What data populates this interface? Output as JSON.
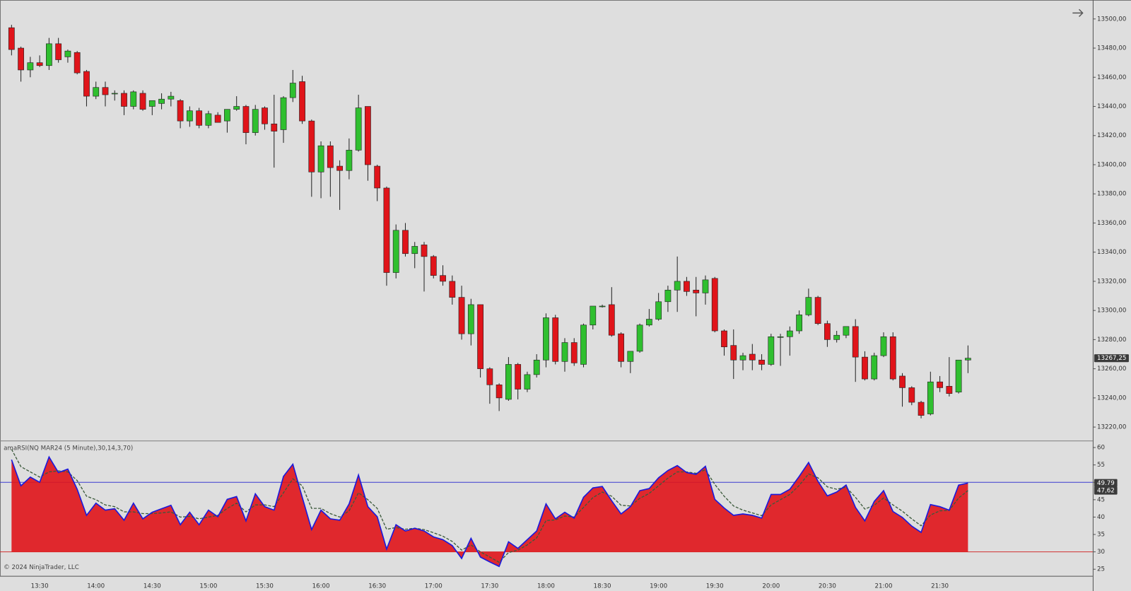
{
  "chart_data": [
    {
      "type": "candlestick",
      "categories": [
        null,
        null,
        null,
        "13:30",
        null,
        null,
        null,
        null,
        null,
        "14:00",
        null,
        null,
        null,
        null,
        null,
        "14:30",
        null,
        null,
        null,
        null,
        null,
        "15:00",
        null,
        null,
        null,
        null,
        null,
        "15:30",
        null,
        null,
        null,
        null,
        null,
        "16:00",
        null,
        null,
        null,
        null,
        null,
        "16:30",
        null,
        null,
        null,
        null,
        null,
        "17:00",
        null,
        null,
        null,
        null,
        null,
        "17:30",
        null,
        null,
        null,
        null,
        null,
        "18:00",
        null,
        null,
        null,
        null,
        null,
        "18:30",
        null,
        null,
        null,
        null,
        null,
        "19:00",
        null,
        null,
        null,
        null,
        null,
        "19:30",
        null,
        null,
        null,
        null,
        null,
        "20:00",
        null,
        null,
        null,
        null,
        null,
        "20:30",
        null,
        null,
        null,
        null,
        null,
        "21:00",
        null,
        null,
        null,
        null,
        null,
        "21:30",
        null,
        null,
        null
      ],
      "open": [
        13494,
        13480,
        13465,
        13470,
        13468,
        13483,
        13474,
        13477,
        13464,
        13447,
        13453,
        13449,
        13449,
        13440,
        13449,
        13440,
        13442,
        13445,
        13444,
        13430,
        13437,
        13427,
        13434,
        13430,
        13438,
        13440,
        13422,
        13439,
        13428,
        13424,
        13446,
        13457,
        13430,
        13395,
        13413,
        13399,
        13396,
        13410,
        13440,
        13399,
        13384,
        13326,
        13355,
        13339,
        13345,
        13337,
        13324,
        13320,
        13309,
        13284,
        13304,
        13260,
        13249,
        13239,
        13263,
        13246,
        13256,
        13266,
        13295,
        13265,
        13278,
        13263,
        13290,
        13303,
        13304,
        13284,
        13265,
        13272,
        13290,
        13294,
        13306,
        13314,
        13320,
        13314,
        13312,
        13322,
        13286,
        13276,
        13266,
        13270,
        13266,
        13263,
        13282,
        13282,
        13286,
        13297,
        13309,
        13291,
        13280,
        13283,
        13289,
        13268,
        13253,
        13269,
        13282,
        13255,
        13247,
        13237,
        13229,
        13251,
        13248,
        13244,
        13266
      ],
      "high": [
        13496,
        13481,
        13474,
        13475,
        13487,
        13487,
        13479,
        13478,
        13465,
        13457,
        13457,
        13451,
        13451,
        13451,
        13451,
        13443,
        13449,
        13450,
        13445,
        13440,
        13439,
        13437,
        13436,
        13438,
        13447,
        13441,
        13441,
        13440,
        13448,
        13447,
        13465,
        13461,
        13431,
        13416,
        13416,
        13403,
        13418,
        13448,
        13440,
        13400,
        13385,
        13359,
        13360,
        13347,
        13347,
        13338,
        13331,
        13324,
        13317,
        13308,
        13304,
        13261,
        13250,
        13268,
        13264,
        13258,
        13270,
        13298,
        13297,
        13281,
        13281,
        13291,
        13303,
        13304,
        13316,
        13285,
        13272,
        13291,
        13301,
        13312,
        13317,
        13337,
        13323,
        13323,
        13324,
        13323,
        13287,
        13287,
        13271,
        13277,
        13270,
        13284,
        13284,
        13289,
        13300,
        13315,
        13310,
        13293,
        13286,
        13289,
        13294,
        13272,
        13271,
        13285,
        13285,
        13257,
        13248,
        13238,
        13258,
        13255,
        13268,
        13266,
        13276
      ],
      "low": [
        13475,
        13457,
        13460,
        13467,
        13465,
        13470,
        13470,
        13462,
        13440,
        13445,
        13440,
        13444,
        13434,
        13438,
        13437,
        13434,
        13438,
        13440,
        13425,
        13426,
        13425,
        13425,
        13429,
        13422,
        13437,
        13414,
        13420,
        13424,
        13398,
        13415,
        13443,
        13428,
        13378,
        13377,
        13378,
        13369,
        13390,
        13409,
        13389,
        13375,
        13317,
        13322,
        13337,
        13329,
        13313,
        13322,
        13317,
        13304,
        13280,
        13276,
        13254,
        13236,
        13231,
        13238,
        13239,
        13244,
        13254,
        13261,
        13263,
        13258,
        13262,
        13261,
        13287,
        13302,
        13282,
        13261,
        13257,
        13271,
        13289,
        13293,
        13299,
        13299,
        13310,
        13296,
        13304,
        13285,
        13269,
        13253,
        13259,
        13259,
        13259,
        13262,
        13262,
        13269,
        13284,
        13296,
        13290,
        13275,
        13278,
        13281,
        13251,
        13252,
        13252,
        13268,
        13252,
        13234,
        13235,
        13226,
        13228,
        13244,
        13241,
        13243,
        13257
      ],
      "close": [
        13479,
        13465,
        13470,
        13468,
        13483,
        13472,
        13478,
        13463,
        13447,
        13453,
        13448,
        13449,
        13440,
        13450,
        13438,
        13444,
        13445,
        13447,
        13430,
        13437,
        13427,
        13435,
        13429,
        13438,
        13440,
        13422,
        13438,
        13428,
        13423,
        13446,
        13456,
        13430,
        13395,
        13413,
        13398,
        13396,
        13410,
        13439,
        13400,
        13384,
        13326,
        13355,
        13339,
        13344,
        13337,
        13324,
        13320,
        13309,
        13284,
        13304,
        13260,
        13249,
        13240,
        13263,
        13246,
        13256,
        13266,
        13295,
        13265,
        13278,
        13264,
        13290,
        13303,
        13303,
        13283,
        13265,
        13272,
        13290,
        13294,
        13306,
        13314,
        13320,
        13313,
        13312,
        13321,
        13286,
        13275,
        13266,
        13269,
        13266,
        13263,
        13282,
        13282,
        13286,
        13297,
        13309,
        13291,
        13280,
        13283,
        13289,
        13268,
        13253,
        13269,
        13282,
        13253,
        13247,
        13237,
        13228,
        13251,
        13247,
        13243,
        13266,
        13267.25
      ],
      "up_color": "#2fbf2f",
      "down_color": "#e0141a",
      "last_label": "13267,25",
      "ylim": [
        13211,
        13513
      ],
      "yticks": [
        {
          "value": 13220,
          "label": "13220,00"
        },
        {
          "value": 13240,
          "label": "13240,00"
        },
        {
          "value": 13260,
          "label": "13260,00"
        },
        {
          "value": 13280,
          "label": "13280,00"
        },
        {
          "value": 13300,
          "label": "13300,00"
        },
        {
          "value": 13320,
          "label": "13320,00"
        },
        {
          "value": 13340,
          "label": "13340,00"
        },
        {
          "value": 13360,
          "label": "13360,00"
        },
        {
          "value": 13380,
          "label": "13380,00"
        },
        {
          "value": 13400,
          "label": "13400,00"
        },
        {
          "value": 13420,
          "label": "13420,00"
        },
        {
          "value": 13440,
          "label": "13440,00"
        },
        {
          "value": 13460,
          "label": "13460,00"
        },
        {
          "value": 13480,
          "label": "13480,00"
        },
        {
          "value": 13500,
          "label": "13500,00"
        }
      ]
    },
    {
      "type": "line",
      "title": "amaRSI(NQ MAR24 (5 Minute),30,14,3,70)",
      "annotation": "© 2024 NinjaTrader, LLC",
      "series": [
        {
          "color": "#1a1adc",
          "last_label": "49.79",
          "values": [
            56.5,
            49,
            51.5,
            50,
            57.3,
            52.8,
            53.8,
            48,
            40.5,
            44,
            42,
            42.4,
            39.1,
            44,
            39.5,
            41.4,
            42.4,
            43.4,
            37.8,
            41.4,
            37.8,
            42,
            40.1,
            45.1,
            45.9,
            38.9,
            46.7,
            43,
            42,
            51.7,
            55.2,
            45.7,
            36.4,
            42,
            39.5,
            39.1,
            43.8,
            52.1,
            43,
            40.1,
            30.8,
            37.8,
            36,
            36.8,
            36,
            34.3,
            33.5,
            31.8,
            28.1,
            33.9,
            28.5,
            27.1,
            25.8,
            32.9,
            31,
            33.5,
            36,
            43.8,
            39.5,
            41.4,
            39.7,
            45.7,
            48.4,
            48.8,
            44.7,
            40.9,
            43,
            47.6,
            48.2,
            51.3,
            53.4,
            54.8,
            52.8,
            52.3,
            54.6,
            45.1,
            42.6,
            40.5,
            40.9,
            40.5,
            39.7,
            46.5,
            46.5,
            48,
            51.7,
            55.7,
            50.3,
            46.1,
            47.2,
            49.2,
            42.8,
            38.9,
            44.5,
            47.6,
            41.6,
            39.9,
            37.4,
            35.6,
            43.6,
            43,
            42,
            49.2,
            49.79
          ]
        },
        {
          "color": "#3c5a3c",
          "dash": true,
          "last_label": "47,62",
          "values": [
            59.5,
            54.5,
            53,
            51.5,
            53,
            53.3,
            53,
            50.5,
            46,
            45,
            43.5,
            43,
            41.5,
            41.5,
            41,
            41,
            41.2,
            41.5,
            40,
            40.2,
            39.5,
            40,
            40.5,
            42.5,
            44,
            41.5,
            43.5,
            43.5,
            43,
            47,
            51,
            49,
            42.5,
            42.5,
            41,
            40,
            41.8,
            47,
            45,
            42.5,
            36.5,
            37,
            36.5,
            36.8,
            36.4,
            35.5,
            34.5,
            33,
            30.5,
            32,
            30,
            28.5,
            27,
            29.8,
            30.5,
            32,
            34,
            39,
            39.2,
            40.3,
            40,
            42.8,
            45.6,
            47.2,
            46,
            43.4,
            43.2,
            45.4,
            46.8,
            49,
            51.2,
            53,
            53,
            52.6,
            53.6,
            49.4,
            46,
            43.2,
            42,
            41.2,
            40.4,
            43.5,
            45,
            46.5,
            49.1,
            52.4,
            51.3,
            48.7,
            48,
            48.6,
            45.7,
            42.3,
            43.4,
            45.5,
            43.5,
            41.7,
            39.5,
            37.5,
            40.6,
            41.8,
            41.9,
            45.5,
            47.62
          ]
        }
      ],
      "levels": [
        {
          "value": 50,
          "color": "#3a3ad0"
        },
        {
          "value": 30,
          "color": "#d03030",
          "fill": "#e0141a"
        }
      ],
      "ylim": [
        23.1,
        61.7
      ],
      "yticks": [
        25,
        30,
        35,
        40,
        45,
        50,
        55,
        60
      ]
    }
  ]
}
